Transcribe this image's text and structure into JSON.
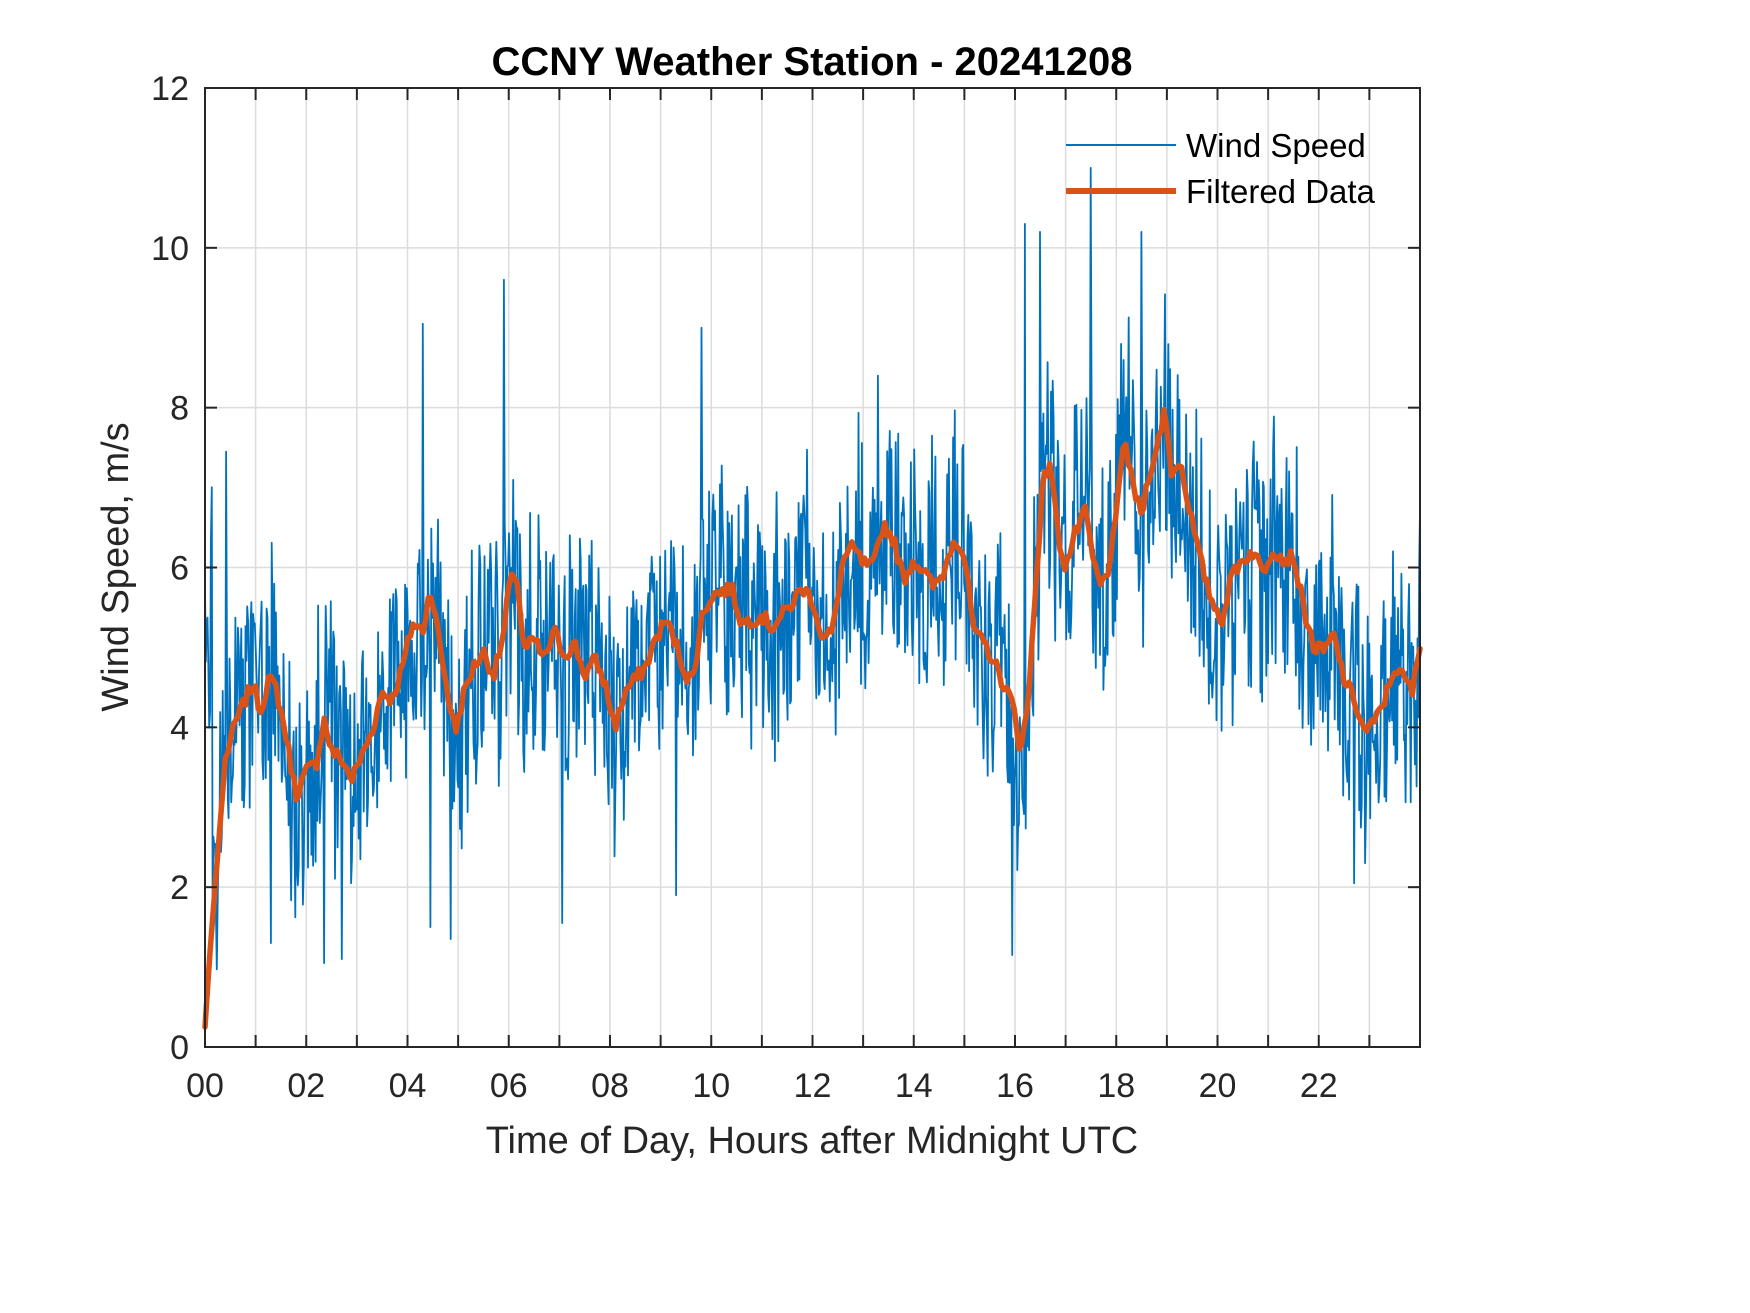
{
  "chart_data": {
    "type": "line",
    "title": "CCNY Weather Station - 20241208",
    "xlabel": "Time of Day, Hours after Midnight UTC",
    "ylabel": "Wind Speed, m/s",
    "xlim": [
      0,
      24
    ],
    "ylim": [
      0,
      12
    ],
    "grid": true,
    "legend_position": "top-right",
    "x_tick_labels": [
      "00",
      "02",
      "04",
      "06",
      "08",
      "10",
      "12",
      "14",
      "16",
      "18",
      "20",
      "22"
    ],
    "x_tick_values": [
      0,
      2,
      4,
      6,
      8,
      10,
      12,
      14,
      16,
      18,
      20,
      22
    ],
    "y_tick_labels": [
      "0",
      "2",
      "4",
      "6",
      "8",
      "10",
      "12"
    ],
    "y_tick_values": [
      0,
      2,
      4,
      6,
      8,
      10,
      12
    ],
    "colors": {
      "wind_speed": "#0072BD",
      "filtered": "#D95319",
      "grid": "#dcdcdc",
      "axes": "#262626"
    },
    "series": [
      {
        "name": "Wind Speed",
        "note": "high-frequency raw measurements; notable extremes listed, noise envelope around filtered trend",
        "peaks": [
          {
            "x": 0.42,
            "y": 7.45
          },
          {
            "x": 4.3,
            "y": 9.05
          },
          {
            "x": 5.9,
            "y": 9.6
          },
          {
            "x": 9.8,
            "y": 9.0
          },
          {
            "x": 13.3,
            "y": 8.4
          },
          {
            "x": 16.2,
            "y": 10.3
          },
          {
            "x": 16.5,
            "y": 10.2
          },
          {
            "x": 17.5,
            "y": 11.0
          },
          {
            "x": 18.5,
            "y": 10.2
          }
        ],
        "troughs": [
          {
            "x": 1.3,
            "y": 1.3
          },
          {
            "x": 2.35,
            "y": 1.05
          },
          {
            "x": 2.7,
            "y": 1.1
          },
          {
            "x": 4.45,
            "y": 1.5
          },
          {
            "x": 4.85,
            "y": 1.35
          },
          {
            "x": 7.05,
            "y": 1.55
          },
          {
            "x": 9.3,
            "y": 1.9
          },
          {
            "x": 15.95,
            "y": 1.15
          },
          {
            "x": 22.7,
            "y": 2.05
          }
        ],
        "spread": 1.6
      },
      {
        "name": "Filtered Data",
        "x": [
          0,
          0.1,
          0.25,
          0.4,
          0.6,
          0.8,
          0.95,
          1.1,
          1.25,
          1.4,
          1.6,
          1.8,
          2.0,
          2.2,
          2.35,
          2.5,
          2.7,
          2.9,
          3.1,
          3.3,
          3.5,
          3.7,
          3.9,
          4.1,
          4.3,
          4.45,
          4.6,
          4.8,
          4.95,
          5.1,
          5.3,
          5.5,
          5.7,
          5.9,
          6.0,
          6.15,
          6.3,
          6.5,
          6.7,
          6.9,
          7.1,
          7.3,
          7.5,
          7.7,
          7.9,
          8.1,
          8.3,
          8.5,
          8.7,
          8.9,
          9.1,
          9.3,
          9.5,
          9.65,
          9.8,
          10.0,
          10.2,
          10.4,
          10.6,
          10.8,
          11.0,
          11.2,
          11.4,
          11.6,
          11.8,
          12.0,
          12.2,
          12.4,
          12.6,
          12.8,
          13.0,
          13.2,
          13.4,
          13.6,
          13.8,
          14.0,
          14.2,
          14.4,
          14.6,
          14.8,
          15.0,
          15.2,
          15.4,
          15.6,
          15.8,
          15.95,
          16.1,
          16.25,
          16.4,
          16.55,
          16.7,
          16.85,
          17.0,
          17.2,
          17.4,
          17.55,
          17.7,
          17.85,
          18.0,
          18.15,
          18.3,
          18.5,
          18.65,
          18.8,
          18.95,
          19.1,
          19.25,
          19.4,
          19.6,
          19.8,
          19.95,
          20.1,
          20.3,
          20.5,
          20.7,
          20.9,
          21.1,
          21.3,
          21.5,
          21.7,
          21.9,
          22.1,
          22.3,
          22.5,
          22.7,
          22.9,
          23.1,
          23.3,
          23.5,
          23.7,
          23.85,
          24.0
        ],
        "y": [
          0.25,
          1.2,
          2.4,
          3.6,
          4.05,
          4.35,
          4.55,
          4.2,
          4.6,
          4.5,
          3.9,
          3.15,
          3.45,
          3.55,
          4.1,
          3.7,
          3.6,
          3.35,
          3.65,
          3.95,
          4.45,
          4.35,
          4.75,
          5.3,
          5.2,
          5.75,
          5.2,
          4.4,
          3.95,
          4.4,
          4.75,
          4.95,
          4.65,
          5.15,
          5.75,
          5.95,
          4.95,
          5.1,
          4.85,
          5.2,
          4.9,
          5.05,
          4.65,
          4.85,
          4.55,
          4.0,
          4.45,
          4.6,
          4.75,
          5.1,
          5.35,
          5.05,
          4.65,
          4.6,
          5.35,
          5.65,
          5.7,
          5.75,
          5.3,
          5.35,
          5.4,
          5.25,
          5.4,
          5.55,
          5.75,
          5.6,
          5.1,
          5.2,
          6.1,
          6.25,
          6.05,
          6.0,
          6.55,
          6.35,
          5.85,
          6.1,
          5.95,
          5.75,
          5.95,
          6.4,
          6.15,
          5.15,
          5.05,
          4.8,
          4.5,
          4.3,
          3.75,
          4.2,
          5.7,
          7.05,
          7.35,
          6.4,
          6.0,
          6.45,
          6.7,
          6.05,
          5.75,
          6.0,
          6.6,
          7.65,
          7.1,
          6.65,
          7.2,
          7.45,
          8.0,
          7.15,
          7.35,
          6.9,
          6.25,
          5.75,
          5.5,
          5.35,
          5.95,
          6.1,
          6.2,
          5.95,
          6.25,
          6.1,
          6.15,
          5.5,
          5.0,
          4.95,
          5.15,
          4.6,
          4.35,
          3.95,
          4.05,
          4.35,
          4.75,
          4.6,
          4.45,
          5.0
        ]
      }
    ]
  },
  "legend": {
    "items": [
      {
        "label": "Wind Speed"
      },
      {
        "label": "Filtered Data"
      }
    ]
  }
}
